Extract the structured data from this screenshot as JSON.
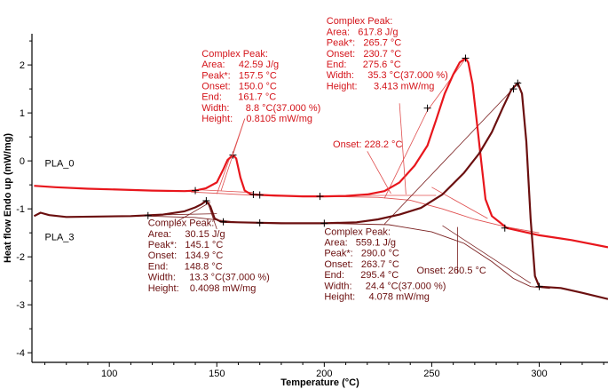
{
  "colors": {
    "pla_0": "#e8161c",
    "pla_3": "#6b0f0f",
    "tangent_0": "#e05050",
    "tangent_3": "#7a2020",
    "axis": "#000000",
    "ann_0": "#d4141a",
    "ann_3": "#6b0f0f"
  },
  "chart_data": {
    "type": "line",
    "title": "",
    "xlabel": "Temperature (°C)",
    "ylabel": "Heat flow Endo up (mW/mg)",
    "xlim": [
      64,
      332
    ],
    "ylim": [
      -4.2,
      2.65
    ],
    "xticks": [
      100,
      150,
      200,
      250,
      300
    ],
    "yticks": [
      -4,
      -3,
      -2,
      -1,
      0,
      1,
      2
    ],
    "grid": false,
    "series": [
      {
        "name": "PLA_0",
        "points": [
          [
            65,
            -0.52
          ],
          [
            75,
            -0.55
          ],
          [
            90,
            -0.58
          ],
          [
            105,
            -0.6
          ],
          [
            120,
            -0.62
          ],
          [
            135,
            -0.63
          ],
          [
            140,
            -0.62
          ],
          [
            145,
            -0.57
          ],
          [
            150,
            -0.45
          ],
          [
            153,
            -0.18
          ],
          [
            155,
            0.02
          ],
          [
            157.5,
            0.12
          ],
          [
            159,
            0.05
          ],
          [
            161,
            -0.35
          ],
          [
            163,
            -0.62
          ],
          [
            166,
            -0.7
          ],
          [
            175,
            -0.72
          ],
          [
            190,
            -0.74
          ],
          [
            200,
            -0.74
          ],
          [
            210,
            -0.73
          ],
          [
            220,
            -0.7
          ],
          [
            228,
            -0.63
          ],
          [
            235,
            -0.45
          ],
          [
            242,
            -0.1
          ],
          [
            248,
            0.32
          ],
          [
            252,
            0.85
          ],
          [
            256,
            1.4
          ],
          [
            260,
            1.8
          ],
          [
            263,
            2.05
          ],
          [
            265.7,
            2.14
          ],
          [
            267,
            2.05
          ],
          [
            269,
            1.6
          ],
          [
            271,
            0.8
          ],
          [
            273,
            0.0
          ],
          [
            275,
            -0.8
          ],
          [
            278,
            -1.15
          ],
          [
            285,
            -1.4
          ],
          [
            300,
            -1.55
          ],
          [
            315,
            -1.65
          ],
          [
            332,
            -1.8
          ]
        ]
      },
      {
        "name": "PLA_3",
        "points": [
          [
            65,
            -1.15
          ],
          [
            68,
            -1.08
          ],
          [
            72,
            -1.13
          ],
          [
            80,
            -1.17
          ],
          [
            95,
            -1.16
          ],
          [
            110,
            -1.15
          ],
          [
            125,
            -1.12
          ],
          [
            135,
            -1.05
          ],
          [
            140,
            -0.97
          ],
          [
            143,
            -0.9
          ],
          [
            145.1,
            -0.83
          ],
          [
            147,
            -0.95
          ],
          [
            149,
            -1.2
          ],
          [
            152,
            -1.27
          ],
          [
            160,
            -1.28
          ],
          [
            180,
            -1.3
          ],
          [
            200,
            -1.3
          ],
          [
            215,
            -1.28
          ],
          [
            225,
            -1.22
          ],
          [
            235,
            -1.12
          ],
          [
            245,
            -0.98
          ],
          [
            255,
            -0.7
          ],
          [
            265,
            -0.25
          ],
          [
            272,
            0.15
          ],
          [
            278,
            0.6
          ],
          [
            283,
            1.1
          ],
          [
            287,
            1.48
          ],
          [
            290,
            1.62
          ],
          [
            292,
            1.4
          ],
          [
            294,
            0.4
          ],
          [
            296,
            -1.2
          ],
          [
            298,
            -2.4
          ],
          [
            300,
            -2.62
          ],
          [
            310,
            -2.65
          ],
          [
            320,
            -2.75
          ],
          [
            332,
            -2.88
          ]
        ]
      }
    ],
    "baselines": [
      {
        "series": "PLA_0",
        "points": [
          [
            138,
            -0.65
          ],
          [
            160,
            -0.7
          ],
          [
            180,
            -0.74
          ],
          [
            200,
            -0.74
          ],
          [
            225,
            -0.76
          ],
          [
            240,
            -0.82
          ],
          [
            255,
            -1.0
          ],
          [
            270,
            -1.22
          ],
          [
            285,
            -1.38
          ],
          [
            300,
            -1.5
          ]
        ]
      },
      {
        "series": "PLA_3",
        "points": [
          [
            118,
            -1.15
          ],
          [
            140,
            -1.18
          ],
          [
            160,
            -1.28
          ],
          [
            200,
            -1.3
          ],
          [
            230,
            -1.33
          ],
          [
            250,
            -1.48
          ],
          [
            265,
            -1.72
          ],
          [
            278,
            -2.1
          ],
          [
            288,
            -2.45
          ],
          [
            296,
            -2.62
          ],
          [
            305,
            -2.66
          ]
        ]
      }
    ],
    "tangents": [
      {
        "series": "PLA_0",
        "points": [
          [
            140,
            -0.6
          ],
          [
            167,
            -0.66
          ]
        ]
      },
      {
        "series": "PLA_0",
        "points": [
          [
            150,
            -0.69
          ],
          [
            156,
            0.06
          ]
        ]
      },
      {
        "series": "PLA_0",
        "points": [
          [
            228,
            -0.78
          ],
          [
            248,
            1.05
          ]
        ]
      },
      {
        "series": "PLA_0",
        "points": [
          [
            248,
            1.05
          ],
          [
            266,
            2.15
          ]
        ]
      },
      {
        "series": "PLA_0",
        "points": [
          [
            214,
            -0.72
          ],
          [
            252,
            -0.72
          ]
        ]
      },
      {
        "series": "PLA_0",
        "points": [
          [
            250,
            -0.55
          ],
          [
            276,
            -1.2
          ]
        ]
      },
      {
        "series": "PLA_3",
        "points": [
          [
            132,
            -1.25
          ],
          [
            147,
            -0.86
          ]
        ]
      },
      {
        "series": "PLA_3",
        "points": [
          [
            118,
            -1.13
          ],
          [
            150,
            -1.1
          ]
        ]
      },
      {
        "series": "PLA_3",
        "points": [
          [
            228,
            -1.32
          ],
          [
            291,
            1.65
          ]
        ]
      },
      {
        "series": "PLA_3",
        "points": [
          [
            255,
            -1.35
          ],
          [
            296,
            -2.55
          ]
        ]
      }
    ],
    "markers": [
      {
        "series": "PLA_0",
        "x": 140.0,
        "y": -0.62
      },
      {
        "series": "PLA_0",
        "x": 157.5,
        "y": 0.12
      },
      {
        "series": "PLA_0",
        "x": 167.0,
        "y": -0.7
      },
      {
        "series": "PLA_0",
        "x": 170.0,
        "y": -0.71
      },
      {
        "series": "PLA_0",
        "x": 198.0,
        "y": -0.74
      },
      {
        "series": "PLA_0",
        "x": 248.0,
        "y": 1.1
      },
      {
        "series": "PLA_0",
        "x": 265.7,
        "y": 2.14
      },
      {
        "series": "PLA_0",
        "x": 284.0,
        "y": -1.4
      },
      {
        "series": "PLA_3",
        "x": 118.0,
        "y": -1.14
      },
      {
        "series": "PLA_3",
        "x": 145.1,
        "y": -0.83
      },
      {
        "series": "PLA_3",
        "x": 153.0,
        "y": -1.27
      },
      {
        "series": "PLA_3",
        "x": 170.0,
        "y": -1.29
      },
      {
        "series": "PLA_3",
        "x": 200.0,
        "y": -1.3
      },
      {
        "series": "PLA_3",
        "x": 288.0,
        "y": 1.5
      },
      {
        "series": "PLA_3",
        "x": 290.0,
        "y": 1.62
      },
      {
        "series": "PLA_3",
        "x": 300.0,
        "y": -2.62
      }
    ],
    "series_labels": [
      {
        "text": "PLA_0",
        "x": 70,
        "y": -0.12
      },
      {
        "text": "PLA_3",
        "x": 70,
        "y": -1.65
      }
    ],
    "annotations": [
      {
        "series": "PLA_0",
        "x": 143,
        "y": 2.17,
        "lines": [
          "Complex Peak:",
          "Area:     42.59 J/g",
          "Peak*:   157.5 °C",
          "Onset:   150.0 °C",
          "End:      161.7 °C",
          "Width:      8.8 °C(37.000 %)",
          "Height:     0.8105 mW/mg"
        ]
      },
      {
        "series": "PLA_0",
        "x": 201,
        "y": 2.85,
        "lines": [
          "Complex Peak:",
          "Area:   617.8 J/g",
          "Peak*:   265.7 °C",
          "Onset:   230.7 °C",
          "End:      275.6 °C",
          "Width:     35.3 °C(37.000 %)",
          "Height:      3.413 mW/mg"
        ]
      },
      {
        "series": "PLA_0",
        "x": 204,
        "y": 0.28,
        "lines": [
          "Onset: 228.2 °C"
        ]
      },
      {
        "series": "PLA_3",
        "x": 118,
        "y": -1.36,
        "lines": [
          "Complex Peak:",
          "Area:     30.15 J/g",
          "Peak*:   145.1 °C",
          "Onset:   134.9 °C",
          "End:      148.8 °C",
          "Width:     13.3 °C(37.000 %)",
          "Height:    0.4098 mW/mg"
        ]
      },
      {
        "series": "PLA_3",
        "x": 200,
        "y": -1.54,
        "lines": [
          "Complex Peak:",
          "Area:   559.1 J/g",
          "Peak*:   290.0 °C",
          "Onset:   263.7 °C",
          "End:      295.4 °C",
          "Width:     24.4 °C(37.000 %)",
          "Height:     4.078 mW/mg"
        ]
      },
      {
        "series": "PLA_3",
        "x": 243,
        "y": -2.35,
        "lines": [
          "Onset: 260.5 °C"
        ]
      }
    ],
    "leaders": [
      {
        "series": "PLA_0",
        "from": [
          163,
          0.88
        ],
        "to": [
          157,
          0.1
        ]
      },
      {
        "series": "PLA_0",
        "from": [
          163,
          0.88
        ],
        "to": [
          152,
          -0.62
        ]
      },
      {
        "series": "PLA_0",
        "from": [
          235,
          1.2
        ],
        "to": [
          238,
          -0.7
        ]
      },
      {
        "series": "PLA_0",
        "from": [
          220,
          0.2
        ],
        "to": [
          231,
          -0.68
        ]
      },
      {
        "series": "PLA_3",
        "from": [
          150,
          -1.42
        ],
        "to": [
          146,
          -0.9
        ]
      },
      {
        "series": "PLA_3",
        "from": [
          262,
          -2.35
        ],
        "to": [
          262,
          -1.38
        ]
      }
    ]
  }
}
